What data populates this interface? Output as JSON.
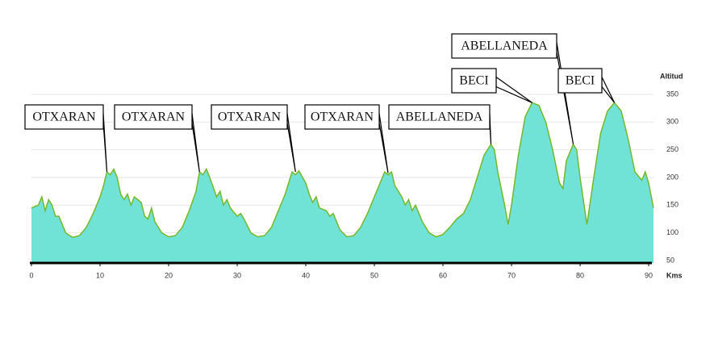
{
  "chart_data": {
    "type": "area",
    "y_label": "Altitud",
    "x_label": "Kms",
    "color": "#70e3d6",
    "line_color": "#76b82a",
    "xlim": [
      0,
      90.7
    ],
    "ylim": [
      50,
      350
    ],
    "xticks": [
      0,
      10,
      20,
      30,
      40,
      50,
      60,
      70,
      80,
      90
    ],
    "yticks": [
      50,
      100,
      150,
      200,
      250,
      300,
      350
    ],
    "grid": true,
    "x": [
      0,
      1,
      1.5,
      2,
      2.5,
      3,
      3.5,
      4,
      5,
      6,
      7,
      8,
      9,
      10,
      10.5,
      11,
      11.5,
      12,
      12.5,
      13,
      13.5,
      14,
      14.5,
      15,
      15.5,
      16,
      16.5,
      17,
      17.5,
      18,
      19,
      20,
      21,
      22,
      23,
      24,
      24.5,
      25,
      25.5,
      26,
      27,
      27.5,
      28,
      28.5,
      29,
      30,
      30.5,
      31,
      32,
      33,
      34,
      35,
      36,
      37,
      38,
      38.5,
      39,
      40,
      40.5,
      41,
      41.5,
      42,
      43,
      43.5,
      44,
      45,
      46,
      47,
      48,
      49,
      50,
      51,
      51.5,
      52,
      52.5,
      53,
      54,
      54.5,
      55,
      55.5,
      56,
      56.5,
      57,
      58,
      59,
      60,
      61,
      62,
      63,
      64,
      65,
      66,
      67,
      67.5,
      68,
      69,
      69.5,
      70,
      71,
      72,
      73,
      74,
      75,
      76,
      77,
      77.5,
      78,
      79,
      79.5,
      80,
      81,
      82,
      83,
      84,
      85,
      86,
      87,
      88,
      89,
      89.5,
      90,
      90.7
    ],
    "y": [
      145,
      150,
      165,
      140,
      160,
      150,
      130,
      130,
      100,
      92,
      95,
      110,
      135,
      165,
      185,
      210,
      205,
      215,
      200,
      170,
      160,
      170,
      150,
      165,
      160,
      155,
      130,
      125,
      145,
      120,
      100,
      93,
      95,
      110,
      140,
      175,
      210,
      205,
      215,
      200,
      165,
      175,
      150,
      160,
      145,
      130,
      135,
      125,
      100,
      93,
      95,
      110,
      140,
      170,
      210,
      205,
      212,
      190,
      170,
      155,
      165,
      145,
      140,
      130,
      135,
      105,
      93,
      95,
      110,
      135,
      165,
      195,
      210,
      205,
      210,
      185,
      165,
      150,
      160,
      140,
      150,
      135,
      120,
      100,
      93,
      97,
      110,
      125,
      135,
      160,
      200,
      240,
      260,
      250,
      210,
      150,
      115,
      150,
      240,
      310,
      335,
      330,
      300,
      250,
      190,
      180,
      230,
      260,
      250,
      200,
      115,
      200,
      280,
      320,
      335,
      320,
      270,
      210,
      195,
      210,
      190,
      145
    ],
    "annotations": [
      {
        "text": "OTXARAN",
        "x": 11,
        "y": 210
      },
      {
        "text": "OTXARAN",
        "x": 24.5,
        "y": 210
      },
      {
        "text": "OTXARAN",
        "x": 38.5,
        "y": 210
      },
      {
        "text": "OTXARAN",
        "x": 52,
        "y": 208
      },
      {
        "text": "ABELLANEDA",
        "x": 67,
        "y": 260
      },
      {
        "text": "ABELLANEDA",
        "x": 79,
        "y": 260
      },
      {
        "text": "BECI",
        "x": 73,
        "y": 335
      },
      {
        "text": "BECI",
        "x": 85,
        "y": 335
      }
    ]
  }
}
